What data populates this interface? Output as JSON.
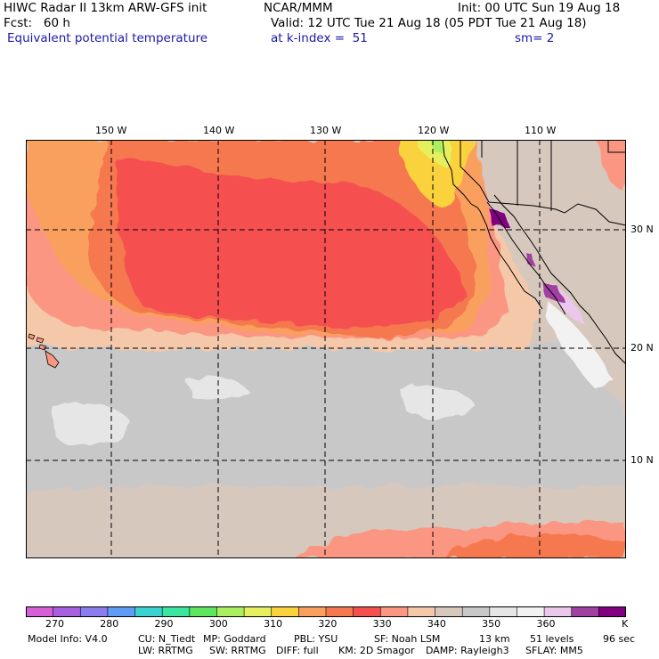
{
  "header": {
    "line1_left": "HIWC Radar II 13km ARW-GFS init",
    "line1_mid": "NCAR/MMM",
    "line1_right": "Init: 00 UTC Sun 19 Aug 18",
    "line2_left": "Fcst:   60 h",
    "line2_right": "Valid: 12 UTC Tue 21 Aug 18 (05 PDT Tue 21 Aug 18)",
    "line3_left": "Equivalent potential temperature",
    "line3_mid": "at k-index =  51",
    "line3_right": "sm= 2"
  },
  "map": {
    "lon_labels": [
      "150 W",
      "140 W",
      "130 W",
      "120 W",
      "110 W"
    ],
    "lat_labels": [
      "30 N",
      "20 N",
      "10 N"
    ]
  },
  "colorbar": {
    "colors": [
      "#d65fd6",
      "#a85fe0",
      "#8a7df0",
      "#5f9cf5",
      "#3cd2d2",
      "#3ce6a0",
      "#5fe65f",
      "#a8f05f",
      "#e6f05f",
      "#fad23c",
      "#faa05f",
      "#f57850",
      "#f55050",
      "#fa9682",
      "#f5c8aa",
      "#d7c8be",
      "#c8c8c8",
      "#e6e6e6",
      "#f2f2f2",
      "#ebc8eb",
      "#a040a0",
      "#800080"
    ],
    "labels": [
      "270",
      "280",
      "290",
      "300",
      "310",
      "320",
      "330",
      "340",
      "350",
      "360"
    ],
    "unit": "K"
  },
  "footer": {
    "row1": [
      "Model Info: V4.0",
      "CU: N_Tiedt",
      "MP: Goddard",
      "PBL: YSU",
      "SF: Noah LSM",
      "13 km",
      "51 levels",
      "96 sec"
    ],
    "row2": [
      "LW: RRTMG",
      "SW: RRTMG",
      "DIFF: full",
      "KM: 2D Smagor",
      "DAMP: Rayleigh3",
      "SFLAY: MM5"
    ]
  }
}
